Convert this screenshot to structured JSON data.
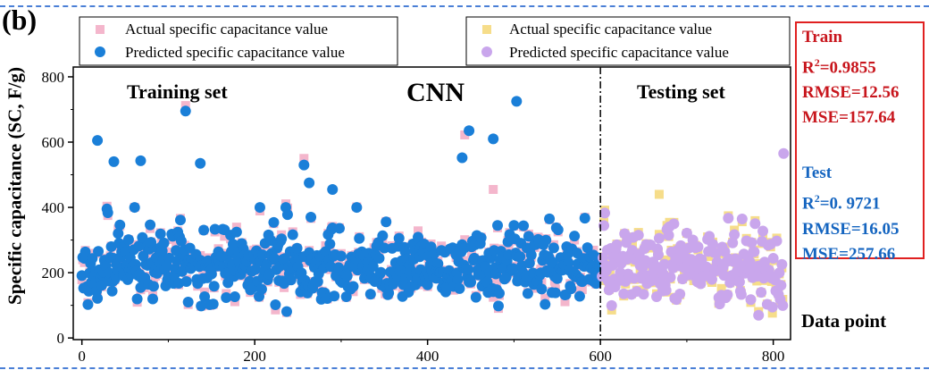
{
  "panel_label": "(b)",
  "chart_data": {
    "type": "scatter",
    "title": "CNN",
    "xlabel": "Data point",
    "ylabel": "Specific capacitance (SC, F/g)",
    "xlim": [
      -10,
      820
    ],
    "ylim": [
      -5,
      830
    ],
    "xticks": [
      0,
      200,
      400,
      600,
      800
    ],
    "yticks": [
      0,
      200,
      400,
      600,
      800
    ],
    "split_x": 600,
    "regions": {
      "train": "Training set",
      "test": "Testing set"
    },
    "legend_train": {
      "actual": "Actual specific capacitance value",
      "predicted": "Predicted specific capacitance value"
    },
    "legend_test": {
      "actual": "Actual specific capacitance value",
      "predicted": "Predicted specific capacitance value"
    },
    "colors": {
      "train_actual": "#f4b6cc",
      "train_pred": "#1a7fd8",
      "test_actual": "#f6dd8a",
      "test_pred": "#c9a6ec"
    },
    "n_train": 600,
    "n_test": 210,
    "seed": 17,
    "outliers_pred": [
      [
        18,
        605
      ],
      [
        37,
        540
      ],
      [
        68,
        543
      ],
      [
        120,
        695
      ],
      [
        137,
        535
      ],
      [
        257,
        530
      ],
      [
        263,
        475
      ],
      [
        290,
        455
      ],
      [
        440,
        552
      ],
      [
        448,
        635
      ],
      [
        476,
        610
      ],
      [
        503,
        725
      ],
      [
        812,
        565
      ]
    ],
    "outliers_actual": [
      [
        120,
        712
      ],
      [
        257,
        550
      ],
      [
        443,
        622
      ],
      [
        476,
        455
      ],
      [
        668,
        440
      ]
    ]
  },
  "metrics": {
    "train_title": "Train",
    "train_r2_prefix": "R",
    "train_r2_sup": "2",
    "train_r2_value": "=0.9855",
    "train_rmse": "RMSE=12.56",
    "train_mse": "MSE=157.64",
    "test_title": "Test",
    "test_r2_prefix": "R",
    "test_r2_sup": "2",
    "test_r2_value": "=0. 9721",
    "test_rmse": "RMSE=16.05",
    "test_mse": "MSE=257.66"
  }
}
